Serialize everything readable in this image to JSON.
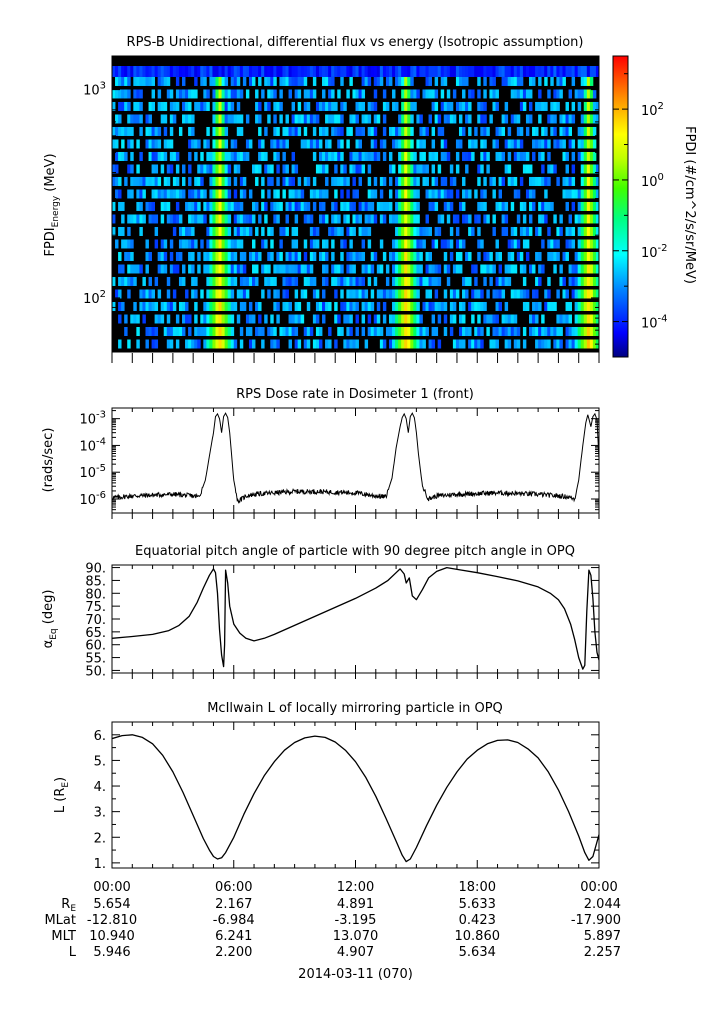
{
  "panels": {
    "spectrogram": {
      "title": "RPS-B  Unidirectional, differential flux vs energy (Isotropic assumption)",
      "ylabel_main": "FPDI",
      "ylabel_sub": "Energy",
      "ylabel_unit": " (MeV)",
      "yticks": [
        {
          "base": "10",
          "exp": "3",
          "value": 1000
        },
        {
          "base": "10",
          "exp": "2",
          "value": 100
        }
      ],
      "colorbar": {
        "label": "FPDI (#/cm^2/s/sr/MeV)",
        "ticks": [
          {
            "base": "10",
            "exp": "2"
          },
          {
            "base": "10",
            "exp": "0"
          },
          {
            "base": "10",
            "exp": "-2"
          },
          {
            "base": "10",
            "exp": "-4"
          }
        ]
      }
    },
    "dose": {
      "title": "RPS  Dose rate in Dosimeter 1 (front)",
      "ylabel": "(rads/sec)",
      "yticks": [
        {
          "base": "10",
          "exp": "-3"
        },
        {
          "base": "10",
          "exp": "-4"
        },
        {
          "base": "10",
          "exp": "-5"
        },
        {
          "base": "10",
          "exp": "-6"
        }
      ]
    },
    "pitch": {
      "title": "Equatorial pitch angle of particle with 90 degree pitch angle in OPQ",
      "ylabel_main": "α",
      "ylabel_sub": "Eq",
      "ylabel_unit": " (deg)",
      "yticks": [
        "90.",
        "85.",
        "80.",
        "75.",
        "70.",
        "65.",
        "60.",
        "55.",
        "50."
      ]
    },
    "lshell": {
      "title": "McIlwain L of locally mirroring particle in OPQ",
      "ylabel_main": "L (R",
      "ylabel_sub": "E",
      "ylabel_end": ")",
      "yticks": [
        "6.",
        "5.",
        "4.",
        "3.",
        "2.",
        "1."
      ]
    }
  },
  "xaxis": {
    "ticks": [
      "00:00",
      "06:00",
      "12:00",
      "18:00",
      "00:00"
    ],
    "date": "2014-03-11 (070)"
  },
  "ephemeris": {
    "rows": [
      {
        "label": "R",
        "sub": "E",
        "values": [
          "5.654",
          "2.167",
          "4.891",
          "5.633",
          "2.044"
        ]
      },
      {
        "label": "MLat",
        "sub": "",
        "values": [
          "-12.810",
          "-6.984",
          "-3.195",
          "0.423",
          "-17.900"
        ]
      },
      {
        "label": "MLT",
        "sub": "",
        "values": [
          "10.940",
          "6.241",
          "13.070",
          "10.860",
          "5.897"
        ]
      },
      {
        "label": "L",
        "sub": "",
        "values": [
          "5.946",
          "2.200",
          "4.907",
          "5.634",
          "2.257"
        ]
      }
    ]
  },
  "chart_data": [
    {
      "type": "heatmap",
      "title": "RPS-B  Unidirectional, differential flux vs energy (Isotropic assumption)",
      "xlabel": "",
      "ylabel": "FPDI Energy (MeV)",
      "xlim_hours": [
        0,
        24
      ],
      "ylim_mev": [
        55,
        1450
      ],
      "yscale": "log",
      "z_log10_range": [
        -5,
        3.5
      ],
      "background_log10": -6,
      "colormap": [
        "#00007f",
        "#0000ff",
        "#00a0ff",
        "#00ffff",
        "#00ff60",
        "#60ff00",
        "#ffff00",
        "#ff9000",
        "#ff0000"
      ],
      "peaks": [
        {
          "center_hour": 5.3,
          "peak_log10": 2.0
        },
        {
          "center_hour": 14.5,
          "peak_log10": 2.0
        },
        {
          "center_hour": 23.5,
          "peak_log10": 2.0
        }
      ],
      "top_band": {
        "energy_mev_from": 1150,
        "energy_mev_to": 1450,
        "log10": -3.7
      }
    },
    {
      "type": "line",
      "title": "RPS  Dose rate in Dosimeter 1 (front)",
      "xlabel": "",
      "ylabel": "(rads/sec)",
      "yscale": "log",
      "ylim": [
        3e-07,
        0.0025
      ],
      "xlim": [
        0,
        24
      ],
      "x": [
        0,
        0.5,
        1,
        2,
        3,
        3.5,
        4,
        4.3,
        4.6,
        4.8,
        5.0,
        5.1,
        5.2,
        5.3,
        5.4,
        5.5,
        5.6,
        5.7,
        5.8,
        5.9,
        6.0,
        6.2,
        6.4,
        6.6,
        7,
        8,
        9,
        10,
        11,
        12,
        12.5,
        13,
        13.5,
        13.8,
        14.0,
        14.2,
        14.3,
        14.4,
        14.5,
        14.6,
        14.7,
        14.8,
        14.9,
        15.0,
        15.1,
        15.3,
        15.6,
        16,
        17,
        18,
        19,
        20,
        21,
        22,
        22.5,
        22.8,
        23.0,
        23.2,
        23.35,
        23.45,
        23.5,
        23.6,
        23.7,
        23.8,
        23.9,
        24.0
      ],
      "y": [
        1.1e-06,
        1.2e-06,
        1.3e-06,
        1.4e-06,
        1.5e-06,
        1.4e-06,
        1.3e-06,
        1.2e-06,
        5e-06,
        4e-05,
        0.0003,
        0.0012,
        0.0015,
        0.001,
        0.0003,
        0.0012,
        0.0016,
        0.0011,
        0.0003,
        4e-05,
        5e-06,
        8e-07,
        1e-06,
        1.3e-06,
        1.5e-06,
        1.7e-06,
        1.9e-06,
        1.9e-06,
        1.8e-06,
        1.7e-06,
        1.5e-06,
        1.3e-06,
        1.2e-06,
        6e-06,
        8e-05,
        0.0005,
        0.0011,
        0.0015,
        0.001,
        0.0003,
        0.0012,
        0.0016,
        0.0011,
        0.0003,
        5e-05,
        3e-06,
        1e-06,
        1.3e-06,
        1.5e-06,
        1.6e-06,
        1.7e-06,
        1.6e-06,
        1.5e-06,
        1.3e-06,
        1.2e-06,
        1e-06,
        5e-06,
        0.0001,
        0.0007,
        0.0014,
        0.001,
        0.0005,
        0.0012,
        0.0015,
        0.0009,
        3e-05
      ]
    },
    {
      "type": "line",
      "title": "Equatorial pitch angle of particle with 90 degree pitch angle in OPQ",
      "xlabel": "",
      "ylabel": "α Eq (deg)",
      "ylim": [
        49,
        91
      ],
      "xlim": [
        0,
        24
      ],
      "x": [
        0,
        1,
        2,
        2.8,
        3.3,
        3.8,
        4.2,
        4.5,
        4.8,
        5.0,
        5.1,
        5.2,
        5.3,
        5.4,
        5.5,
        5.55,
        5.6,
        5.7,
        5.8,
        6.0,
        6.3,
        6.6,
        7.0,
        7.5,
        8,
        9,
        10,
        11,
        12,
        13,
        13.6,
        14.0,
        14.2,
        14.4,
        14.5,
        14.65,
        14.8,
        15.0,
        15.3,
        15.6,
        16.0,
        16.5,
        17,
        18,
        19,
        20,
        21,
        21.6,
        22.0,
        22.3,
        22.6,
        22.8,
        23.0,
        23.2,
        23.3,
        23.4,
        23.5,
        23.6,
        23.7,
        23.8,
        23.9,
        24.0
      ],
      "y": [
        62.5,
        63.2,
        64.0,
        65.5,
        67.5,
        71.0,
        76.5,
        82.0,
        87.0,
        89.5,
        88.0,
        80.0,
        66.0,
        56.0,
        51.5,
        60.0,
        89.0,
        84.0,
        75.0,
        68.0,
        64.5,
        62.5,
        61.5,
        62.5,
        64.0,
        67.5,
        71.0,
        74.5,
        78.0,
        82.0,
        85.0,
        88.0,
        89.5,
        87.5,
        84.0,
        86.0,
        79.0,
        77.5,
        81.5,
        86.0,
        88.5,
        90.0,
        89.3,
        88.0,
        86.5,
        84.8,
        82.5,
        80.0,
        77.5,
        74.0,
        68.0,
        62.0,
        55.0,
        50.5,
        52.0,
        73.0,
        89.0,
        87.0,
        78.0,
        65.0,
        57.0,
        54.0
      ]
    },
    {
      "type": "line",
      "title": "McIlwain L of locally mirroring particle in OPQ",
      "xlabel": "",
      "ylabel": "L (R E)",
      "ylim": [
        0.8,
        6.5
      ],
      "xlim": [
        0,
        24
      ],
      "x": [
        0,
        0.5,
        1,
        1.5,
        2,
        2.5,
        3,
        3.5,
        4,
        4.5,
        4.8,
        5.0,
        5.2,
        5.4,
        5.6,
        6.0,
        6.5,
        7,
        7.5,
        8,
        8.5,
        9,
        9.5,
        10,
        10.5,
        11,
        11.5,
        12,
        12.5,
        13,
        13.5,
        14,
        14.3,
        14.5,
        14.7,
        15,
        15.5,
        16,
        16.5,
        17,
        17.5,
        18,
        18.5,
        19,
        19.5,
        20,
        20.5,
        21,
        21.5,
        22,
        22.5,
        23,
        23.3,
        23.5,
        23.7,
        24.0
      ],
      "y": [
        5.85,
        5.97,
        6.0,
        5.9,
        5.65,
        5.2,
        4.55,
        3.75,
        2.85,
        1.95,
        1.5,
        1.25,
        1.15,
        1.2,
        1.4,
        2.0,
        2.9,
        3.7,
        4.4,
        4.95,
        5.4,
        5.7,
        5.88,
        5.95,
        5.9,
        5.72,
        5.4,
        4.95,
        4.35,
        3.6,
        2.75,
        1.85,
        1.3,
        1.05,
        1.15,
        1.6,
        2.45,
        3.25,
        3.95,
        4.55,
        5.05,
        5.4,
        5.65,
        5.78,
        5.8,
        5.7,
        5.45,
        5.1,
        4.55,
        3.85,
        3.0,
        2.05,
        1.4,
        1.1,
        1.25,
        2.1
      ]
    }
  ]
}
